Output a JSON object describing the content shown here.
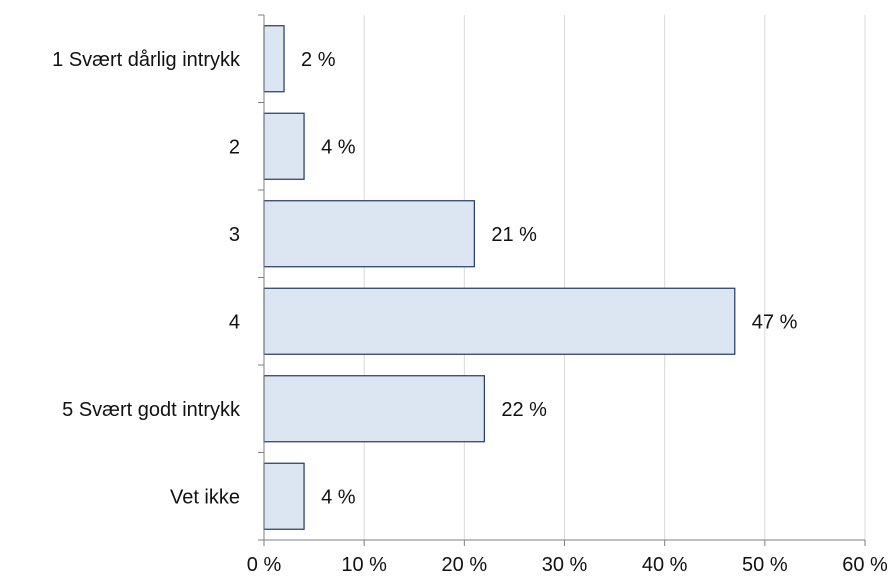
{
  "chart_data": {
    "type": "bar",
    "orientation": "horizontal",
    "title": "",
    "xlabel": "",
    "ylabel": "",
    "categories": [
      "1 Svært dårlig intrykk",
      "2",
      "3",
      "4",
      "5 Svært godt intrykk",
      "Vet ikke"
    ],
    "values": [
      2,
      4,
      21,
      47,
      22,
      4
    ],
    "data_labels": [
      "2 %",
      "4 %",
      "21 %",
      "47 %",
      "22 %",
      "4 %"
    ],
    "xlim": [
      0,
      60
    ],
    "x_ticks": [
      0,
      10,
      20,
      30,
      40,
      50,
      60
    ],
    "x_tick_labels": [
      "0 %",
      "10 %",
      "20 %",
      "30 %",
      "40 %",
      "50 %",
      "60 %"
    ],
    "grid": "vertical",
    "legend": "none",
    "colors": {
      "bar_fill": "#dce6f2",
      "bar_stroke": "#1f3864",
      "grid": "#d9d9d9",
      "axis": "#7f7f7f",
      "text": "#111111"
    }
  }
}
